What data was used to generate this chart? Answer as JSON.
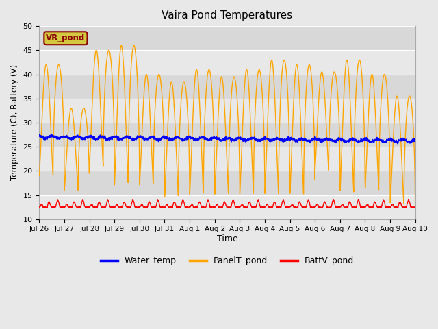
{
  "title": "Vaira Pond Temperatures",
  "xlabel": "Time",
  "ylabel": "Temperature (C), Battery (V)",
  "ylim": [
    10,
    50
  ],
  "legend_label": "VR_pond",
  "series_labels": [
    "Water_temp",
    "PanelT_pond",
    "BattV_pond"
  ],
  "series_colors": [
    "#0000ff",
    "#ffa500",
    "#ff0000"
  ],
  "background_color": "#e8e8e8",
  "axes_bg_color": "#dcdcdc",
  "num_days": 15,
  "pts_per_day": 144,
  "xtick_labels": [
    "Jul 26",
    "Jul 27",
    "Jul 28",
    "Jul 29",
    "Jul 30",
    "Jul 31",
    "Aug 1",
    "Aug 2",
    "Aug 3",
    "Aug 4",
    "Aug 5",
    "Aug 6",
    "Aug 7",
    "Aug 8",
    "Aug 9",
    "Aug 10"
  ],
  "ytick_labels": [
    "10",
    "15",
    "20",
    "25",
    "30",
    "35",
    "40",
    "45",
    "50"
  ],
  "ytick_vals": [
    10,
    15,
    20,
    25,
    30,
    35,
    40,
    45,
    50
  ],
  "band_colors": [
    "#e8e8e8",
    "#d8d8d8"
  ]
}
